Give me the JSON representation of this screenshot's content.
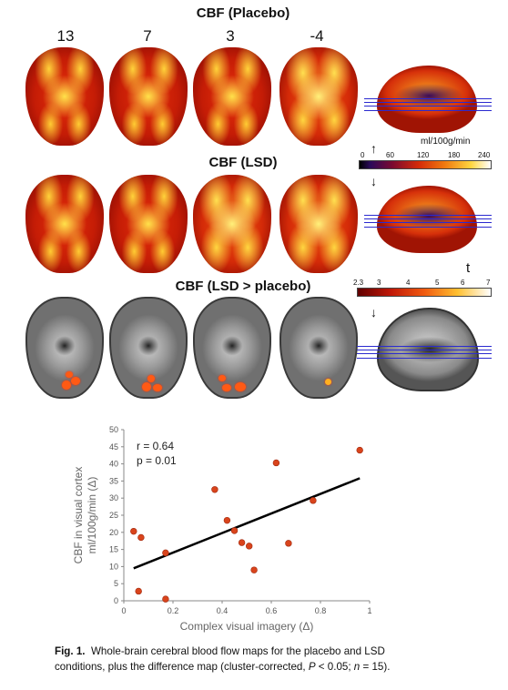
{
  "panels": {
    "placebo_title": "CBF (Placebo)",
    "lsd_title": "CBF (LSD)",
    "diff_title": "CBF (LSD > placebo)",
    "slice_numbers": [
      "13",
      "7",
      "3",
      "-4"
    ],
    "cbf_unit": "ml/100g/min",
    "cbf_ticks": [
      "0",
      "60",
      "120",
      "180",
      "240"
    ],
    "t_label": "t",
    "t_ticks": [
      "2.3",
      "3",
      "4",
      "5",
      "6",
      "7"
    ],
    "arrow_up": "↑",
    "arrow_down": "↓"
  },
  "chart_data": {
    "type": "scatter",
    "xlabel": "Complex visual imagery (Δ)",
    "ylabel": "CBF in visual cortex ml/100g/min (Δ)",
    "xlim": [
      0,
      1
    ],
    "ylim": [
      0,
      50
    ],
    "x_ticks": [
      0,
      0.2,
      0.4,
      0.6,
      0.8,
      1
    ],
    "x_tick_labels": [
      "0",
      "0.2",
      "0.4",
      "0.6",
      "0.8",
      "1"
    ],
    "y_ticks": [
      0,
      5,
      10,
      15,
      20,
      25,
      30,
      35,
      40,
      45,
      50
    ],
    "grid": false,
    "annotations": [
      "r = 0.64",
      "p = 0.01"
    ],
    "points": [
      {
        "x": 0.04,
        "y": 20.3
      },
      {
        "x": 0.06,
        "y": 2.8
      },
      {
        "x": 0.07,
        "y": 18.5
      },
      {
        "x": 0.17,
        "y": 0.5
      },
      {
        "x": 0.17,
        "y": 14.0
      },
      {
        "x": 0.37,
        "y": 32.5
      },
      {
        "x": 0.42,
        "y": 23.5
      },
      {
        "x": 0.45,
        "y": 20.5
      },
      {
        "x": 0.48,
        "y": 17.0
      },
      {
        "x": 0.51,
        "y": 16.0
      },
      {
        "x": 0.53,
        "y": 9.0
      },
      {
        "x": 0.62,
        "y": 40.3
      },
      {
        "x": 0.67,
        "y": 16.8
      },
      {
        "x": 0.77,
        "y": 29.3
      },
      {
        "x": 0.96,
        "y": 44.0
      }
    ],
    "trendline": {
      "x": [
        0.04,
        0.96
      ],
      "y": [
        9.5,
        35.8
      ]
    },
    "point_color": "#d9441c",
    "line_color": "#000000"
  },
  "caption": {
    "label": "Fig. 1.",
    "text_line1": "Whole-brain cerebral blood flow maps for the placebo and LSD",
    "text_line2_a": "conditions, plus the difference map (cluster-corrected, ",
    "p_sym": "P",
    "text_line2_b": " < 0.05; ",
    "n_sym": "n",
    "text_line2_c": " = 15)."
  }
}
